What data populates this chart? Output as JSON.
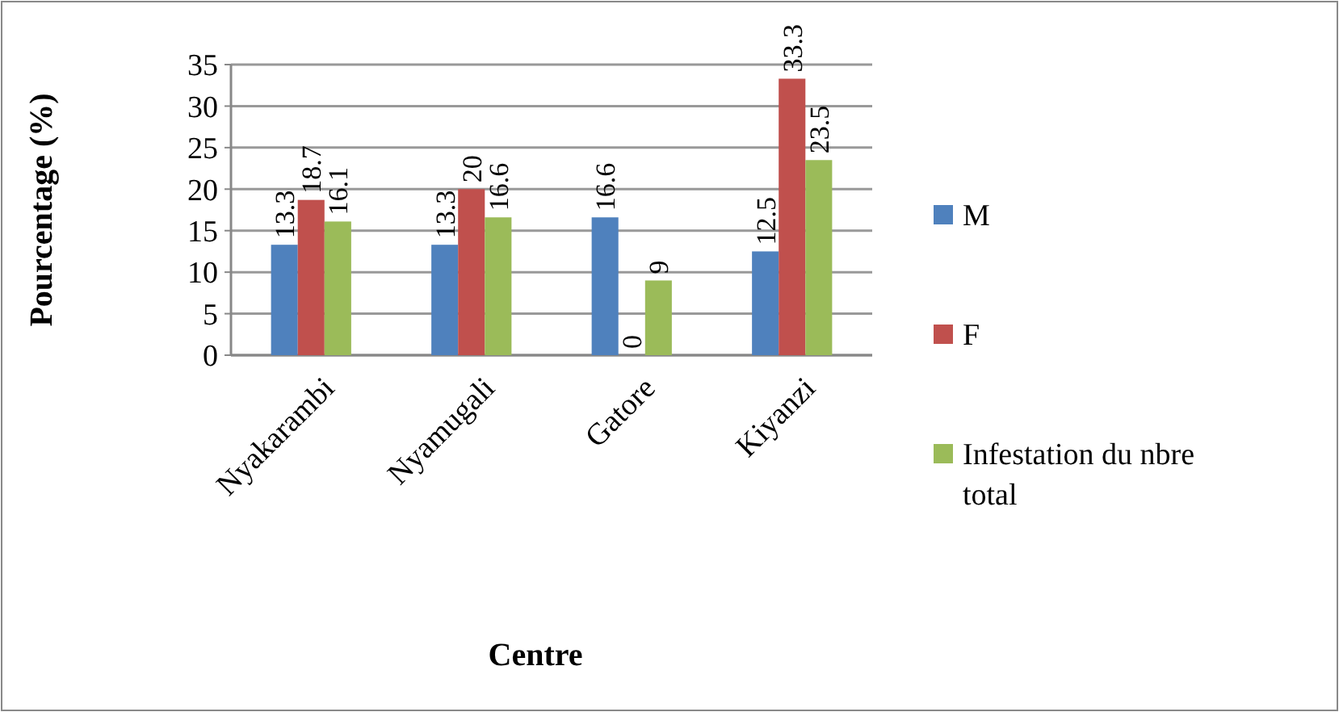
{
  "chart_data": {
    "type": "bar",
    "xlabel": "Centre",
    "ylabel": "Pourcentage (%)",
    "categories": [
      "Nyakarambi",
      "Nyamugali",
      "Gatore",
      "Kiyanzi"
    ],
    "series": [
      {
        "name": "M",
        "color": "#4f81bd",
        "values": [
          13.3,
          13.3,
          16.6,
          12.5
        ]
      },
      {
        "name": "F",
        "color": "#c0504d",
        "values": [
          18.7,
          20,
          0,
          33.3
        ]
      },
      {
        "name": "Infestation du nbre total",
        "color": "#9bbb59",
        "values": [
          16.1,
          16.6,
          9,
          23.5
        ]
      }
    ],
    "ylim": [
      0,
      35
    ],
    "yticks": [
      0,
      5,
      10,
      15,
      20,
      25,
      30,
      35
    ],
    "grid": "y",
    "legend": "right",
    "data_labels": true
  }
}
